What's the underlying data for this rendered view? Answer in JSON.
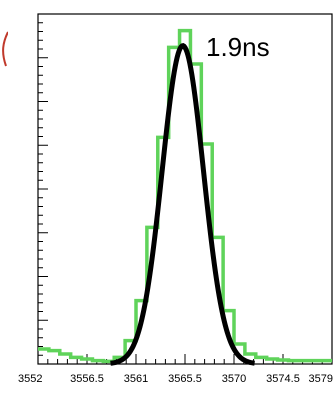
{
  "chart_data": {
    "type": "line",
    "annotation": "1.9ns",
    "xlim": [
      3552,
      3579
    ],
    "ylim": [
      0,
      1.05
    ],
    "x_tick_labels": [
      "3552",
      "3556.5",
      "3561",
      "3565.5",
      "3570",
      "3574.5",
      "3579"
    ],
    "y_major_tick_count": 8,
    "grid": false,
    "legend": "none",
    "series": [
      {
        "style": "histogram",
        "color": "#5fd35a",
        "x": [
          3552,
          3553,
          3554,
          3555,
          3556,
          3557,
          3558,
          3559,
          3560,
          3561,
          3562,
          3563,
          3564,
          3565,
          3566,
          3567,
          3568,
          3569,
          3570,
          3571,
          3572,
          3573,
          3574,
          3575,
          3576,
          3577,
          3578
        ],
        "y": [
          0.045,
          0.04,
          0.03,
          0.02,
          0.015,
          0.01,
          0.008,
          0.02,
          0.07,
          0.19,
          0.41,
          0.68,
          0.95,
          1.0,
          0.9,
          0.66,
          0.38,
          0.16,
          0.06,
          0.03,
          0.02,
          0.015,
          0.012,
          0.01,
          0.01,
          0.01,
          0.01
        ]
      },
      {
        "style": "fit",
        "color": "#000000",
        "mean": 3565.3,
        "sigma": 1.9,
        "amplitude": 0.955
      }
    ]
  },
  "colors": {
    "edge_mark": "#c0392b"
  }
}
